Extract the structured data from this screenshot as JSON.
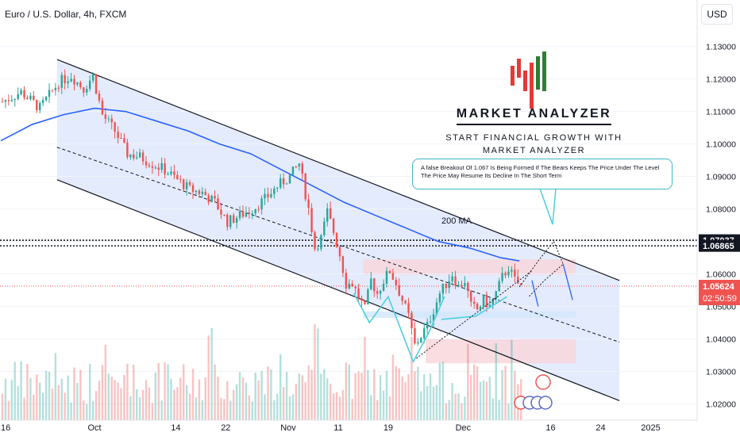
{
  "header": {
    "symbol_title": "Euro / U.S. Dollar, 4h, FXCM",
    "currency_button": "USD"
  },
  "branding": {
    "name": "MARKET ANALYZER",
    "tagline_line1": "START FINANCIAL GROWTH WITH",
    "tagline_line2": "MARKET ANALYZER",
    "logo_colors": [
      "#e53935",
      "#2e7d32"
    ]
  },
  "annotation": {
    "note": "A false Breakout Of 1.067 Is Being Formed If The Bears Keeps The Price Under The Level The Price May Resume Its Decline In The Short Term",
    "ma_label": "200 MA"
  },
  "price_labels": {
    "level_upper": "1.07037",
    "level_lower": "1.06865",
    "current_price": "1.05624",
    "countdown": "02:50:59"
  },
  "colors": {
    "bull": "#26a69a",
    "bear": "#ef5350",
    "ma": "#2962ff",
    "channel_fill": "#dde6fb",
    "zone_red": "#f8d7dc",
    "zone_blue": "#d3e8fb",
    "price_label_bg": "#ef5350",
    "level_label_bg": "#131722",
    "pattern_cyan": "#4dd0e1"
  },
  "chart_data": {
    "type": "candlestick",
    "symbol": "Euro / U.S. Dollar",
    "timeframe": "4h",
    "ylim": [
      1.015,
      1.137
    ],
    "y_ticks": [
      1.02,
      1.03,
      1.04,
      1.05,
      1.06,
      1.07,
      1.08,
      1.09,
      1.1,
      1.11,
      1.12,
      1.13
    ],
    "y_tick_labels": [
      "1.02000",
      "1.03000",
      "1.04000",
      "1.05000",
      "1.06000",
      "1.07000",
      "1.08000",
      "1.09000",
      "1.10000",
      "1.11000",
      "1.12000",
      "1.13000"
    ],
    "x_ticks": [
      "16",
      "Oct",
      "14",
      "22",
      "Nov",
      "11",
      "19",
      "Dec",
      "16",
      "24",
      "2025"
    ],
    "x_tick_positions_in_time_units": [
      0,
      15,
      28,
      36,
      46,
      54,
      62,
      74,
      88,
      96,
      104
    ],
    "price_path": [
      [
        0,
        1.113
      ],
      [
        3,
        1.116
      ],
      [
        6,
        1.111
      ],
      [
        9,
        1.119
      ],
      [
        11,
        1.121
      ],
      [
        13,
        1.117
      ],
      [
        14.5,
        1.121
      ],
      [
        16,
        1.109
      ],
      [
        18,
        1.104
      ],
      [
        20,
        1.097
      ],
      [
        22,
        1.096
      ],
      [
        24,
        1.094
      ],
      [
        26,
        1.092
      ],
      [
        28,
        1.089
      ],
      [
        30,
        1.086
      ],
      [
        32,
        1.085
      ],
      [
        34,
        1.082
      ],
      [
        36,
        1.076
      ],
      [
        38,
        1.078
      ],
      [
        40,
        1.08
      ],
      [
        42,
        1.083
      ],
      [
        44,
        1.087
      ],
      [
        46,
        1.09
      ],
      [
        47.5,
        1.094
      ],
      [
        49,
        1.08
      ],
      [
        50,
        1.068
      ],
      [
        51,
        1.071
      ],
      [
        52,
        1.079
      ],
      [
        53,
        1.073
      ],
      [
        54,
        1.066
      ],
      [
        55,
        1.057
      ],
      [
        56,
        1.057
      ],
      [
        57,
        1.053
      ],
      [
        58,
        1.049
      ],
      [
        59,
        1.058
      ],
      [
        60,
        1.054
      ],
      [
        61,
        1.058
      ],
      [
        62,
        1.061
      ],
      [
        63,
        1.057
      ],
      [
        64,
        1.052
      ],
      [
        65,
        1.047
      ],
      [
        66,
        1.038
      ],
      [
        67,
        1.041
      ],
      [
        68,
        1.044
      ],
      [
        69,
        1.049
      ],
      [
        70,
        1.054
      ],
      [
        71,
        1.057
      ],
      [
        72,
        1.06
      ],
      [
        73,
        1.056
      ],
      [
        74,
        1.058
      ],
      [
        75,
        1.05
      ],
      [
        76,
        1.049
      ],
      [
        77,
        1.052
      ],
      [
        78,
        1.05
      ],
      [
        79,
        1.054
      ],
      [
        80,
        1.059
      ],
      [
        81,
        1.062
      ],
      [
        82,
        1.058
      ],
      [
        83,
        1.056
      ]
    ],
    "moving_average_200": [
      [
        0,
        1.101
      ],
      [
        5,
        1.106
      ],
      [
        10,
        1.109
      ],
      [
        15,
        1.111
      ],
      [
        20,
        1.11
      ],
      [
        25,
        1.107
      ],
      [
        30,
        1.104
      ],
      [
        35,
        1.1
      ],
      [
        40,
        1.097
      ],
      [
        45,
        1.092
      ],
      [
        50,
        1.087
      ],
      [
        55,
        1.082
      ],
      [
        60,
        1.078
      ],
      [
        65,
        1.074
      ],
      [
        70,
        1.07
      ],
      [
        75,
        1.068
      ],
      [
        80,
        1.065
      ],
      [
        83,
        1.064
      ]
    ],
    "channel": {
      "upper": [
        [
          9,
          1.126
        ],
        [
          99,
          1.058
        ]
      ],
      "mid": [
        [
          9,
          1.099
        ],
        [
          99,
          1.039
        ]
      ],
      "lower": [
        [
          9,
          1.089
        ],
        [
          99,
          1.021
        ]
      ]
    },
    "levels": [
      1.07037,
      1.06865
    ],
    "current_price": 1.05624,
    "zones": [
      {
        "kind": "supply",
        "t0": 58,
        "t1": 92,
        "y0": 1.0597,
        "y1": 1.0645
      },
      {
        "kind": "demand",
        "t0": 58,
        "t1": 92,
        "y0": 1.0465,
        "y1": 1.0485
      },
      {
        "kind": "support",
        "t0": 68,
        "t1": 92,
        "y0": 1.0325,
        "y1": 1.04
      }
    ]
  }
}
